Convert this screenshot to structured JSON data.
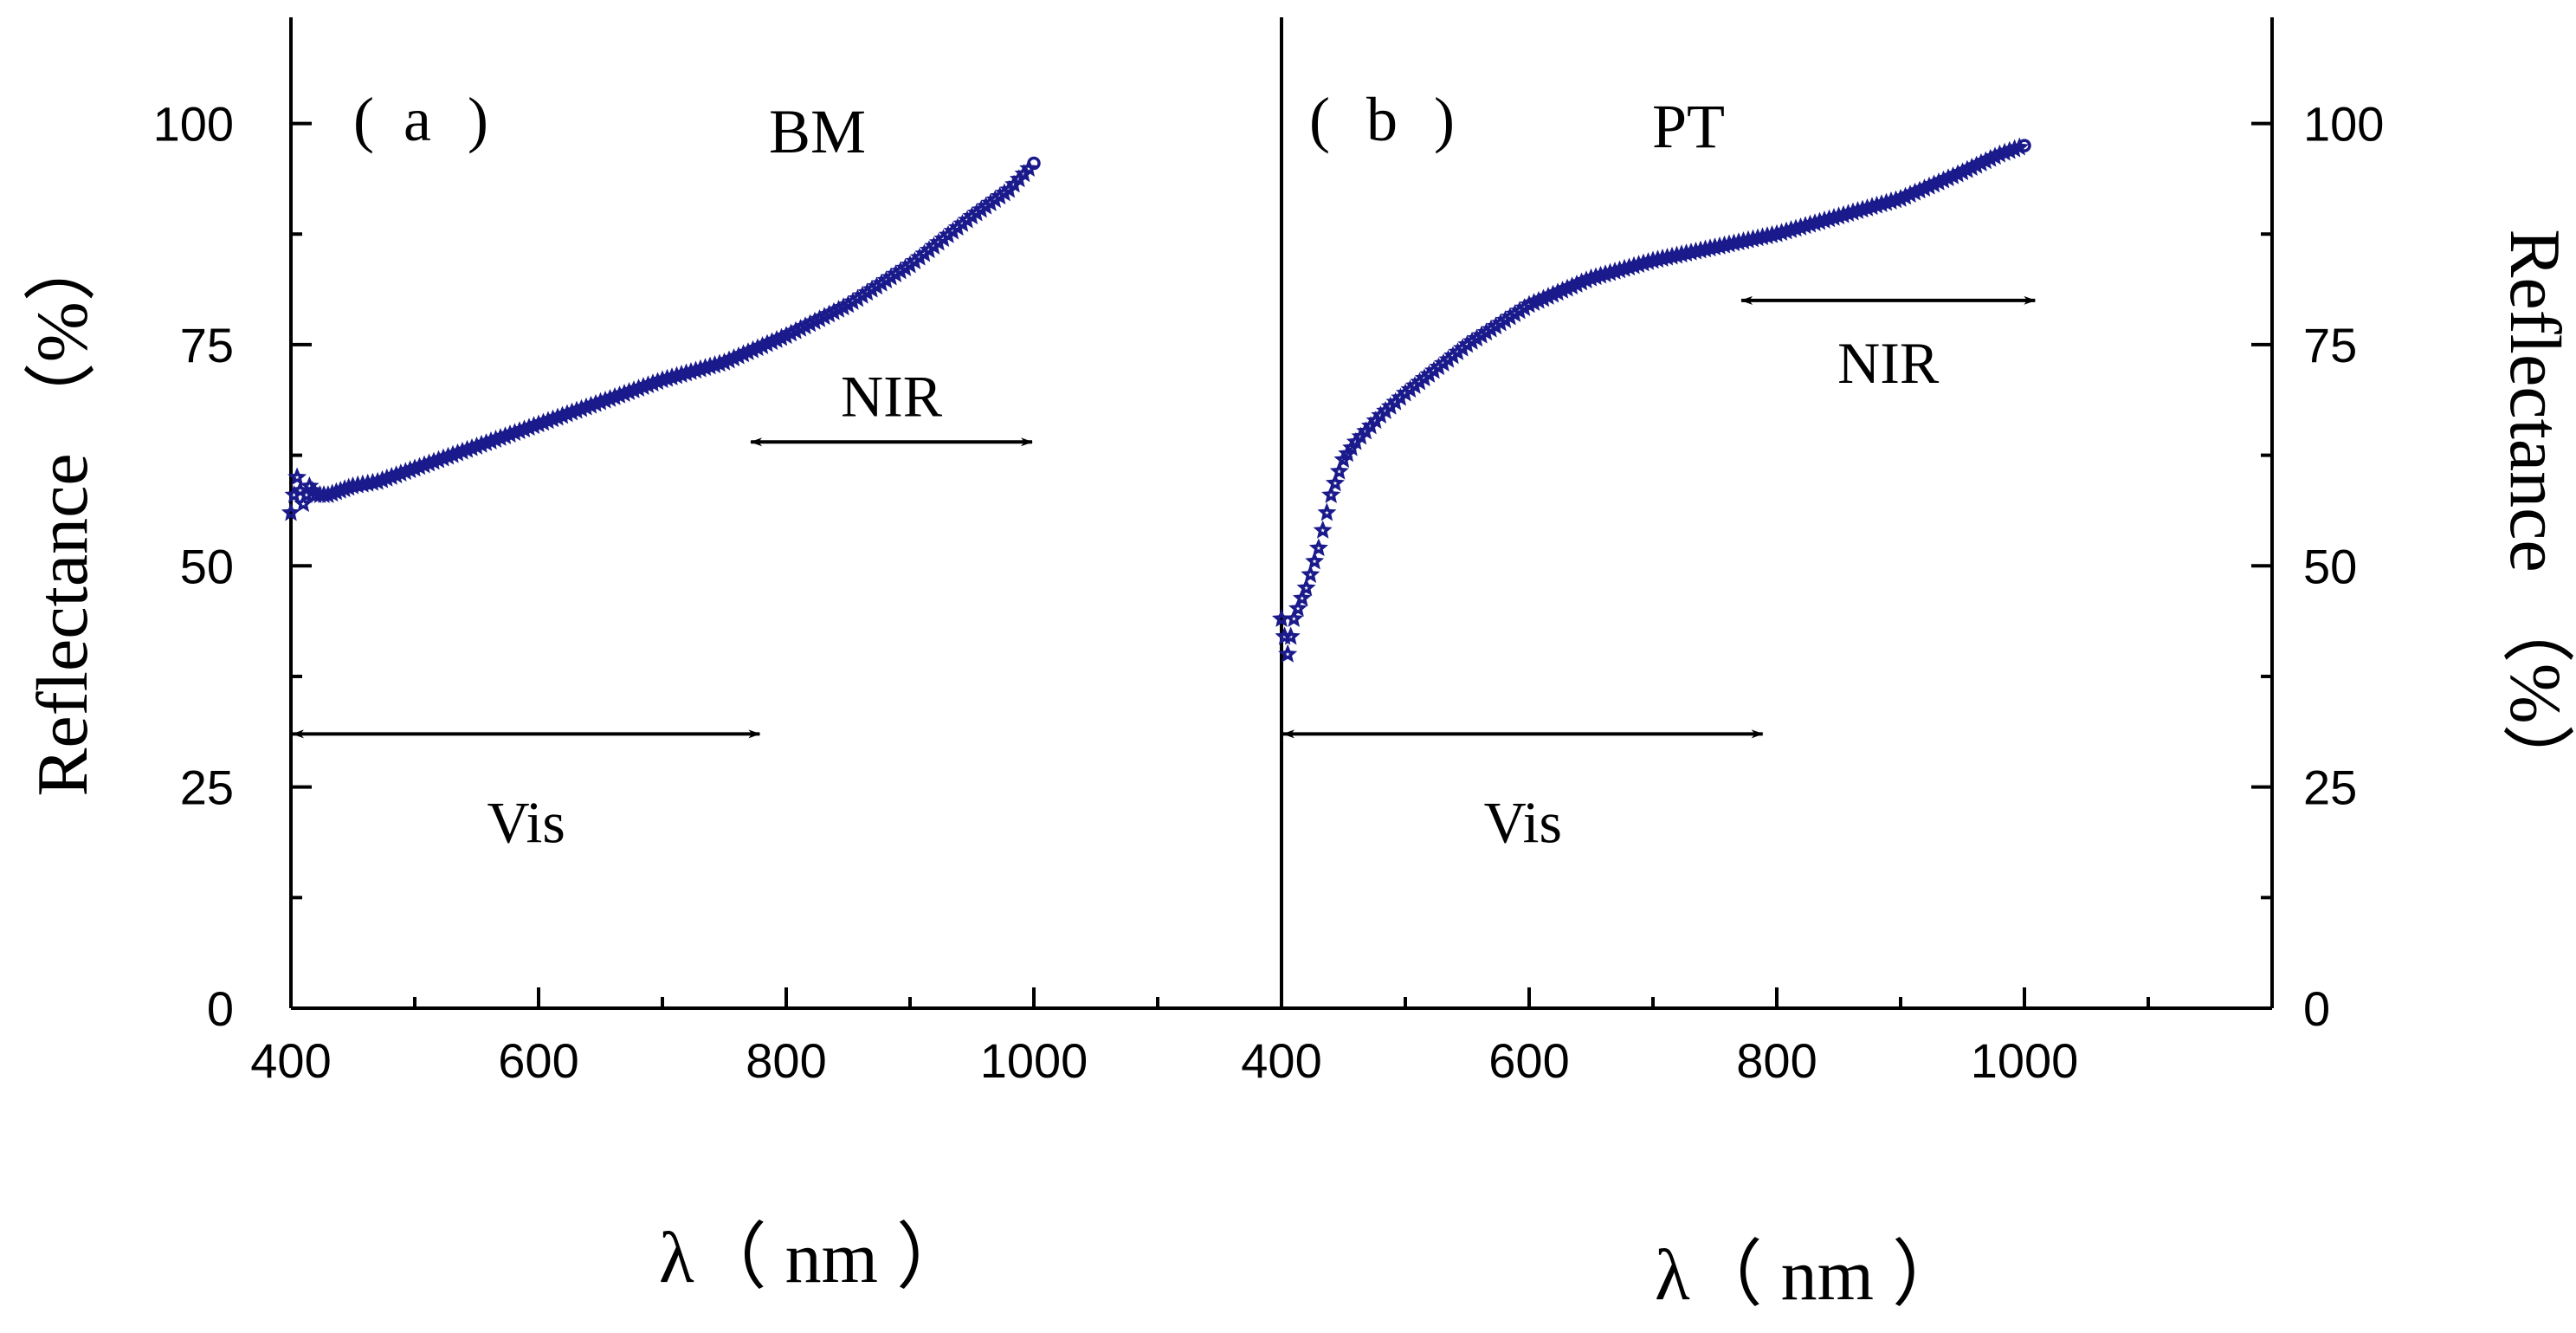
{
  "chart_data": [
    {
      "type": "scatter",
      "panel": "(a)",
      "label_open": "(",
      "label_letter": "a",
      "label_close": ")",
      "sample": "BM",
      "xlabel": "λ（ nm ）",
      "ylabel": "Reflectance （%）",
      "xlim": [
        400,
        1200
      ],
      "ylim": [
        0,
        112
      ],
      "xticks": [
        400,
        600,
        800,
        1000
      ],
      "yticks": [
        0,
        25,
        50,
        75,
        100
      ],
      "x_tick_labels": [
        "400",
        "600",
        "800",
        "1000"
      ],
      "y_tick_labels": [
        "0",
        "25",
        "50",
        "75",
        "100"
      ],
      "color": "#1a1a8c",
      "series": [
        {
          "name": "BM",
          "x": [
            400,
            405,
            410,
            415,
            420,
            430,
            440,
            450,
            470,
            500,
            550,
            600,
            650,
            700,
            750,
            800,
            850,
            900,
            950,
            980,
            1000
          ],
          "y": [
            56,
            60,
            57,
            59,
            58,
            58,
            58.5,
            59,
            59.5,
            61,
            63.5,
            66,
            68.5,
            71,
            73,
            76,
            79.5,
            84,
            89.5,
            92.5,
            95.5
          ]
        }
      ],
      "annotations": [
        {
          "text": "Vis",
          "range": [
            400,
            780
          ],
          "y": 31
        },
        {
          "text": "NIR",
          "range": [
            770,
            1000
          ],
          "y": 64
        }
      ]
    },
    {
      "type": "scatter",
      "panel": "(b)",
      "label_open": "(",
      "label_letter": "b",
      "label_close": ")",
      "sample": "PT",
      "xlabel": "λ（ nm ）",
      "ylabel": "Reflectance （%）",
      "xlim": [
        400,
        1200
      ],
      "ylim": [
        0,
        112
      ],
      "xticks": [
        400,
        600,
        800,
        1000
      ],
      "yticks": [
        0,
        25,
        50,
        75,
        100
      ],
      "x_tick_labels": [
        "400",
        "600",
        "800",
        "1000"
      ],
      "y_tick_labels": [
        "0",
        "25",
        "50",
        "75",
        "100"
      ],
      "color": "#1a1a8c",
      "series": [
        {
          "name": "PT",
          "x": [
            400,
            405,
            410,
            420,
            430,
            440,
            450,
            460,
            480,
            500,
            550,
            600,
            650,
            700,
            750,
            800,
            850,
            900,
            950,
            980,
            1000
          ],
          "y": [
            44,
            40,
            44,
            47.5,
            52,
            58,
            62,
            64,
            67,
            69.5,
            75,
            79.5,
            82.5,
            84.5,
            86,
            87.5,
            89.5,
            91.5,
            94.5,
            96.5,
            97.5
          ]
        }
      ],
      "annotations": [
        {
          "text": "Vis",
          "range": [
            400,
            790
          ],
          "y": 31
        },
        {
          "text": "NIR",
          "range": [
            770,
            1010
          ],
          "y": 80
        }
      ]
    }
  ]
}
